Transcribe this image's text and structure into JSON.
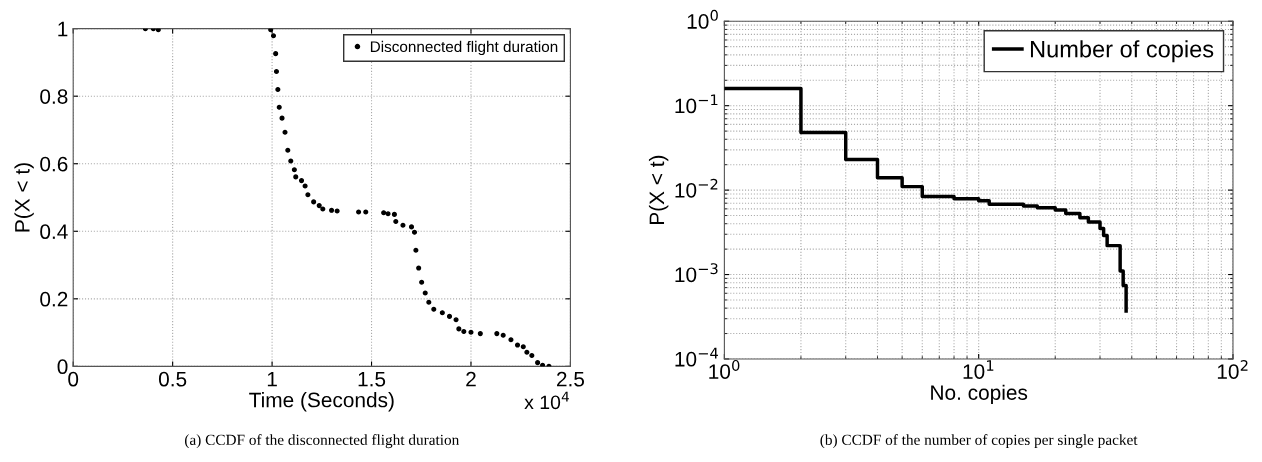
{
  "chart_data": [
    {
      "type": "scatter",
      "xlabel": "Time (Seconds)",
      "ylabel": "P(X < t)",
      "marker": "circle",
      "grid": true,
      "legend": "top right",
      "xlim": [
        0,
        2.5
      ],
      "ylim": [
        0,
        1
      ],
      "xticks": [
        0,
        0.5,
        1,
        1.5,
        2,
        2.5
      ],
      "yticks": [
        0,
        0.2,
        0.4,
        0.6,
        0.8,
        1
      ],
      "annotations": [
        "x 10$^{4}$",
        "(a) CCDF of the disconnected flight duration"
      ],
      "series": [
        {
          "name": "Disconnected flight duration",
          "color": "#000000",
          "x": [
            0.363,
            0.403,
            0.428,
            0.993,
            1.007,
            1.018,
            1.022,
            1.029,
            1.036,
            1.05,
            1.065,
            1.079,
            1.094,
            1.112,
            1.119,
            1.148,
            1.166,
            1.18,
            1.209,
            1.237,
            1.255,
            1.299,
            1.327,
            1.435,
            1.471,
            1.561,
            1.583,
            1.615,
            1.622,
            1.658,
            1.701,
            1.716,
            1.723,
            1.737,
            1.752,
            1.77,
            1.788,
            1.813,
            1.856,
            1.892,
            1.925,
            1.939,
            1.964,
            2.0,
            2.047,
            2.13,
            2.162,
            2.201,
            2.234,
            2.263,
            2.281,
            2.306,
            2.335,
            2.36,
            2.392
          ],
          "values": [
            1.0,
            1.0,
            0.997,
            0.997,
            0.979,
            0.926,
            0.873,
            0.82,
            0.767,
            0.735,
            0.693,
            0.64,
            0.608,
            0.582,
            0.561,
            0.55,
            0.534,
            0.508,
            0.487,
            0.476,
            0.466,
            0.462,
            0.46,
            0.457,
            0.457,
            0.455,
            0.452,
            0.45,
            0.429,
            0.418,
            0.413,
            0.397,
            0.344,
            0.291,
            0.249,
            0.217,
            0.19,
            0.169,
            0.159,
            0.148,
            0.138,
            0.111,
            0.103,
            0.101,
            0.097,
            0.097,
            0.092,
            0.079,
            0.063,
            0.058,
            0.042,
            0.032,
            0.011,
            0.003,
            0.0
          ]
        }
      ]
    },
    {
      "type": "step",
      "xlabel": "No. copies",
      "ylabel": "P(X < t)",
      "log": "xy",
      "grid": true,
      "legend": "top right",
      "marker": "none",
      "line_style": "solid",
      "xlim": [
        1,
        100
      ],
      "ylim": [
        0.0001,
        1
      ],
      "xticks": [
        {
          "value": 1,
          "label": "10$^{0}$"
        },
        {
          "value": 10,
          "label": "10$^{1}$"
        },
        {
          "value": 100,
          "label": "10$^{2}$"
        }
      ],
      "yticks": [
        {
          "value": 0.0001,
          "label": "10$^{−4}$"
        },
        {
          "value": 0.001,
          "label": "10$^{−3}$"
        },
        {
          "value": 0.01,
          "label": "10$^{−2}$"
        },
        {
          "value": 0.1,
          "label": "10$^{−1}$"
        },
        {
          "value": 1,
          "label": "10$^{0}$"
        }
      ],
      "annotations": [
        "(b) CCDF of the number of copies per single packet"
      ],
      "series": [
        {
          "name": "Number of copies",
          "color": "#000000",
          "x": [
            1,
            2,
            3,
            4,
            5,
            6,
            8,
            10,
            11,
            15,
            17,
            20,
            22,
            25,
            27,
            30,
            31,
            32,
            36,
            37,
            38
          ],
          "values": [
            0.16,
            0.048,
            0.023,
            0.014,
            0.011,
            0.0084,
            0.0079,
            0.0075,
            0.0068,
            0.0065,
            0.0062,
            0.0058,
            0.0053,
            0.0047,
            0.0042,
            0.0035,
            0.0029,
            0.0022,
            0.0011,
            0.00074,
            0.00037
          ]
        }
      ]
    }
  ]
}
